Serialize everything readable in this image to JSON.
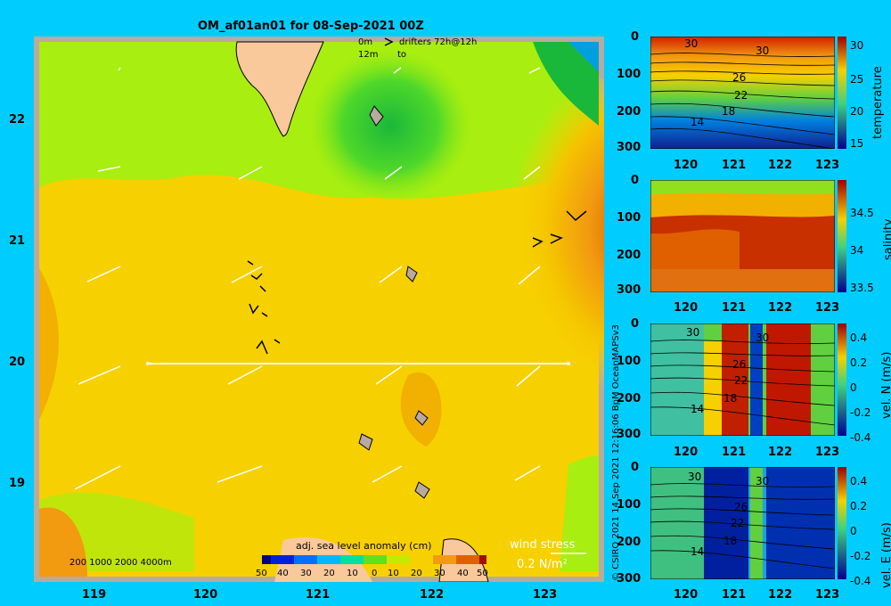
{
  "title": "OM_af01an01 for 08-Sep-2021 00Z",
  "legend": {
    "drifters_0m": "0m",
    "drifters_12m": "12m",
    "drifters_label": "drifters 72h@12h",
    "drifters_to": "to"
  },
  "map": {
    "x_ticks": [
      "119",
      "120",
      "121",
      "122",
      "123"
    ],
    "y_ticks": [
      "22",
      "21",
      "20",
      "19"
    ],
    "depth_legend": "200  1000  2000  4000m",
    "sla_label": "adj. sea level anomaly (cm)",
    "sla_ticks": [
      "50",
      "40",
      "30",
      "20",
      "10",
      "0",
      "10",
      "20",
      "30",
      "40",
      "50"
    ],
    "wind_label": "wind stress",
    "wind_scale": "0.2 N/m²"
  },
  "panels": [
    {
      "label": "temperature",
      "y_ticks": [
        "0",
        "100",
        "200",
        "300"
      ],
      "x_ticks": [
        "120",
        "121",
        "122",
        "123"
      ],
      "cb_ticks": [
        "30",
        "25",
        "20",
        "15"
      ],
      "contour_labels": [
        "30",
        "30",
        "26",
        "22",
        "18",
        "14"
      ]
    },
    {
      "label": "salinity",
      "y_ticks": [
        "0",
        "100",
        "200",
        "300"
      ],
      "x_ticks": [
        "120",
        "121",
        "122",
        "123"
      ],
      "cb_ticks": [
        "34.5",
        "34",
        "33.5"
      ],
      "contour_labels": []
    },
    {
      "label": "vel. N (m/s)",
      "y_ticks": [
        "0",
        "100",
        "200",
        "300"
      ],
      "x_ticks": [
        "120",
        "121",
        "122",
        "123"
      ],
      "cb_ticks": [
        "0.4",
        "0.2",
        "0",
        "-0.2",
        "-0.4"
      ],
      "contour_labels": [
        "30",
        "30",
        "26",
        "22",
        "18",
        "14"
      ]
    },
    {
      "label": "vel. E (m/s)",
      "y_ticks": [
        "0",
        "100",
        "200",
        "300"
      ],
      "x_ticks": [
        "120",
        "121",
        "122",
        "123"
      ],
      "cb_ticks": [
        "0.4",
        "0.2",
        "0",
        "-0.2",
        "-0.4"
      ],
      "contour_labels": [
        "30",
        "30",
        "26",
        "22",
        "18",
        "14"
      ]
    }
  ],
  "credit": "© CSIRO 2021   14 Sep 2021 12:16:06 BpM OceanMAPSv3",
  "colors": {
    "background": "#00cdfd",
    "land": "#f9c89b",
    "border": "#b8aaa0"
  }
}
